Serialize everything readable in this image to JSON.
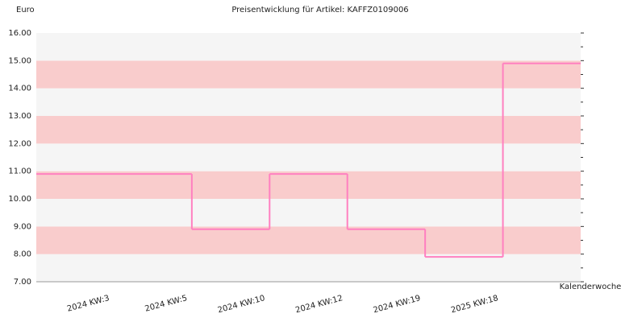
{
  "chart_data": {
    "type": "step",
    "title": "Preisentwicklung für Artikel: KAFFZ0109006",
    "y_label": "Euro",
    "x_label": "Kalenderwoche",
    "categories": [
      "2024 KW:3",
      "2024 KW:5",
      "2024 KW:10",
      "2024 KW:12",
      "2024 KW:19",
      "2025 KW:18"
    ],
    "values": [
      10.9,
      8.9,
      10.9,
      8.9,
      7.9,
      14.9
    ],
    "color": "#ff80c0",
    "band_colors": [
      "#f5f5f5",
      "#f9cccc"
    ],
    "ylim": [
      7,
      16
    ],
    "yticks": [
      {
        "value": 7,
        "label": "7.00"
      },
      {
        "value": 8,
        "label": "8.00"
      },
      {
        "value": 9,
        "label": "9.00"
      },
      {
        "value": 10,
        "label": "10.00"
      },
      {
        "value": 11,
        "label": "11.00"
      },
      {
        "value": 12,
        "label": "12.00"
      },
      {
        "value": 13,
        "label": "13.00"
      },
      {
        "value": 14,
        "label": "14.00"
      },
      {
        "value": 15,
        "label": "15.00"
      },
      {
        "value": 16,
        "label": "16.00"
      }
    ]
  }
}
